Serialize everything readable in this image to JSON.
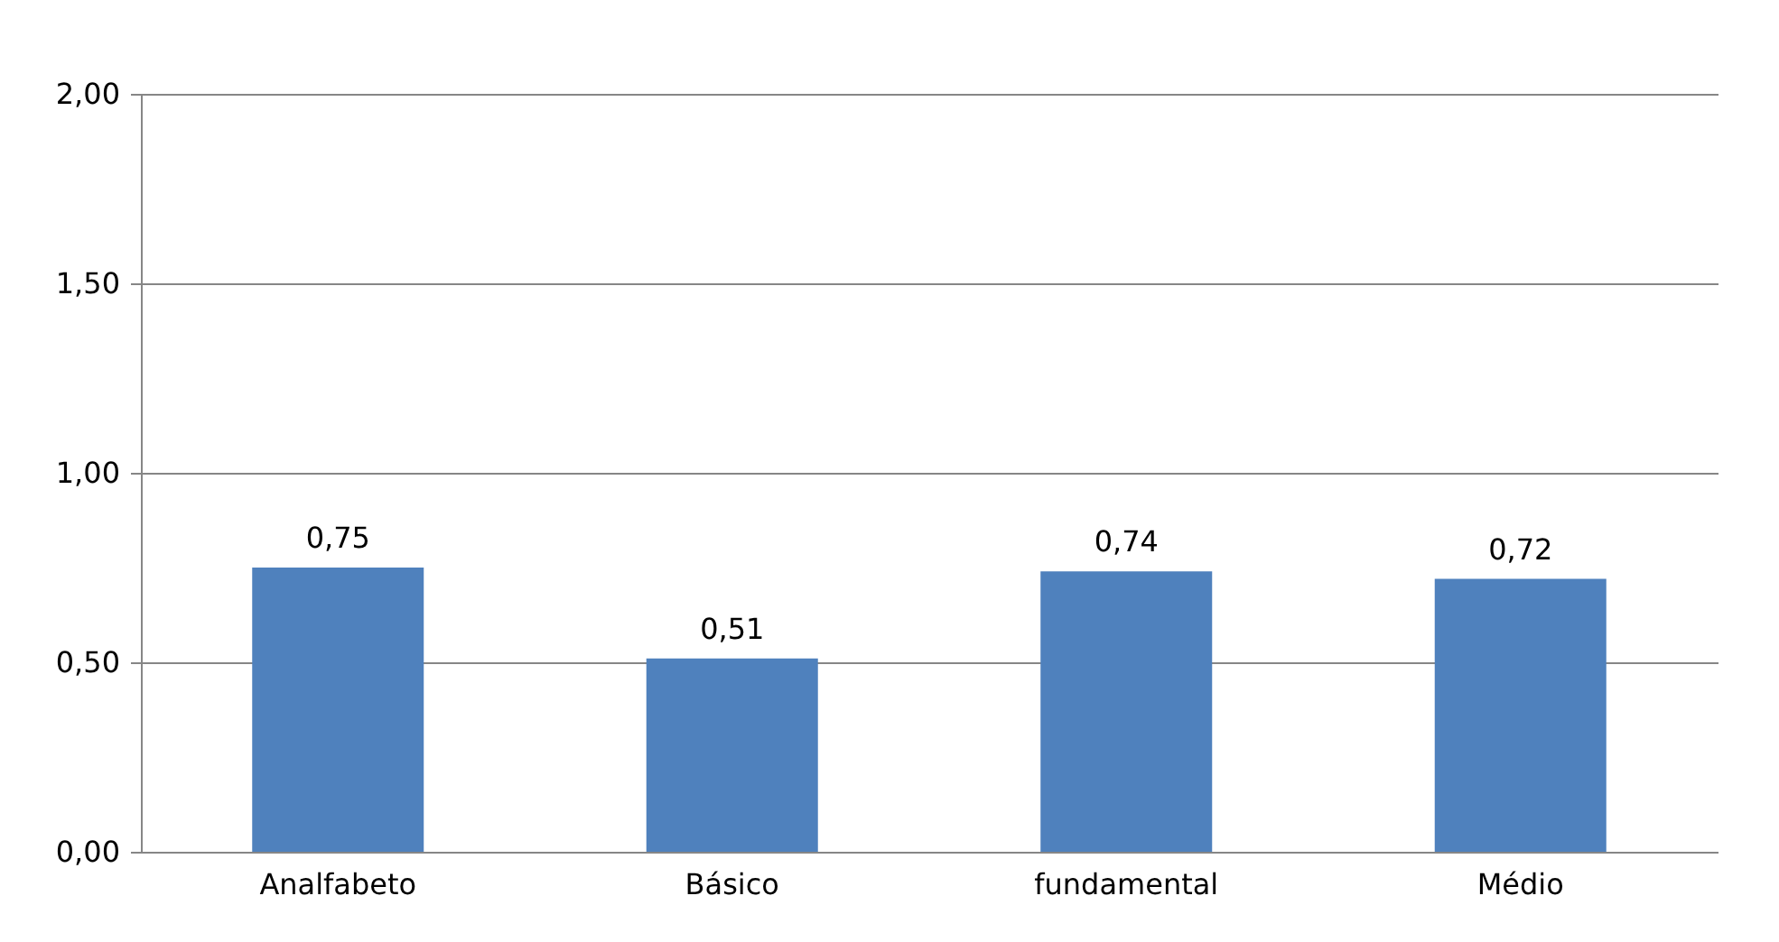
{
  "chart_data": {
    "type": "bar",
    "categories": [
      "Analfabeto",
      "Básico",
      "fundamental",
      "Médio"
    ],
    "values": [
      0.75,
      0.51,
      0.74,
      0.72
    ],
    "value_labels": [
      "0,75",
      "0,51",
      "0,74",
      "0,72"
    ],
    "color": "#4f81bd",
    "ylim": [
      0,
      2
    ],
    "yticks": [
      {
        "value": 0,
        "label": "0,00"
      },
      {
        "value": 0.5,
        "label": "0,50"
      },
      {
        "value": 1,
        "label": "1,00"
      },
      {
        "value": 1.5,
        "label": "1,50"
      },
      {
        "value": 2,
        "label": "2,00"
      }
    ],
    "grid": "y"
  }
}
